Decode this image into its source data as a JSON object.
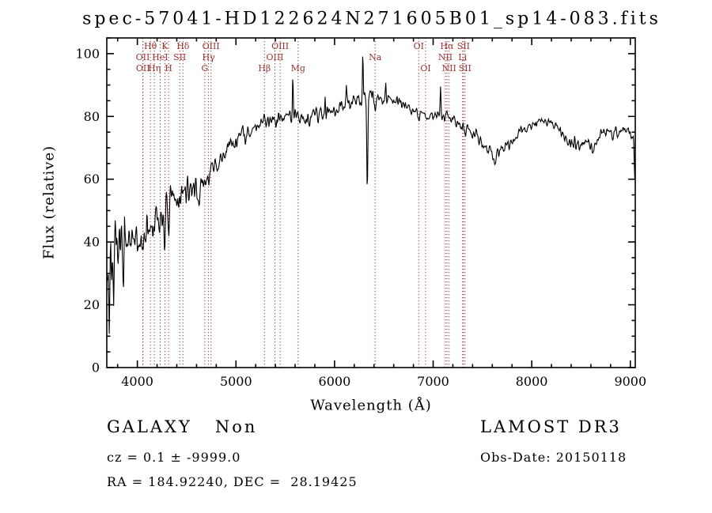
{
  "title": "spec-57041-HD122624N271605B01_sp14-083.fits",
  "chart_data": {
    "type": "line",
    "title": "spec-57041-HD122624N271605B01_sp14-083.fits",
    "xlabel": "Wavelength (Å)",
    "ylabel": "Flux (relative)",
    "xlim": [
      3690,
      9050
    ],
    "ylim": [
      0,
      105
    ],
    "xticks": [
      4000,
      5000,
      6000,
      7000,
      8000,
      9000
    ],
    "yticks": [
      0,
      20,
      40,
      60,
      80,
      100
    ],
    "x_minor_step": 200,
    "y_minor_step": 5,
    "grid": false,
    "legend": "none",
    "line_color": "#000000",
    "marker_color": "#993333",
    "spectral_lines": [
      {
        "label": "OII",
        "wavelength": 4055,
        "row": 2
      },
      {
        "label": "OII",
        "wavelength": 4057,
        "row": 3
      },
      {
        "label": "Hθ",
        "wavelength": 4132,
        "row": 1
      },
      {
        "label": "Hη",
        "wavelength": 4172,
        "row": 3
      },
      {
        "label": "HeI",
        "wavelength": 4231,
        "row": 2
      },
      {
        "label": "K",
        "wavelength": 4279,
        "row": 1
      },
      {
        "label": "H",
        "wavelength": 4317,
        "row": 3
      },
      {
        "label": "SII",
        "wavelength": 4430,
        "row": 2
      },
      {
        "label": "Hδ",
        "wavelength": 4463,
        "row": 1
      },
      {
        "label": "G",
        "wavelength": 4684,
        "row": 3
      },
      {
        "label": "Hγ",
        "wavelength": 4722,
        "row": 2
      },
      {
        "label": "OIII",
        "wavelength": 4747,
        "row": 1
      },
      {
        "label": "Hβ",
        "wavelength": 5289,
        "row": 3
      },
      {
        "label": "OIII",
        "wavelength": 5395,
        "row": 2
      },
      {
        "label": "OIII",
        "wavelength": 5448,
        "row": 1
      },
      {
        "label": "Mg",
        "wavelength": 5630,
        "row": 3
      },
      {
        "label": "Na",
        "wavelength": 6412,
        "row": 2
      },
      {
        "label": "OI",
        "wavelength": 6854,
        "row": 1
      },
      {
        "label": "OI",
        "wavelength": 6924,
        "row": 3
      },
      {
        "label": "NII",
        "wavelength": 7124,
        "row": 2
      },
      {
        "label": "Hα",
        "wavelength": 7140,
        "row": 1
      },
      {
        "label": "NII",
        "wavelength": 7162,
        "row": 3
      },
      {
        "label": "Li",
        "wavelength": 7298,
        "row": 2
      },
      {
        "label": "SII",
        "wavelength": 7308,
        "row": 1
      },
      {
        "label": "SII",
        "wavelength": 7323,
        "row": 3
      }
    ],
    "spectrum": {
      "seed": 7,
      "sample_step": 5,
      "continuum_points": [
        [
          3690,
          32
        ],
        [
          3750,
          34
        ],
        [
          3850,
          36
        ],
        [
          3950,
          38
        ],
        [
          4050,
          41
        ],
        [
          4150,
          44
        ],
        [
          4250,
          48
        ],
        [
          4350,
          52
        ],
        [
          4450,
          55
        ],
        [
          4550,
          57
        ],
        [
          4650,
          58
        ],
        [
          4750,
          62
        ],
        [
          4850,
          66
        ],
        [
          4950,
          71
        ],
        [
          5050,
          74
        ],
        [
          5150,
          76
        ],
        [
          5250,
          78
        ],
        [
          5350,
          79
        ],
        [
          5450,
          80
        ],
        [
          5550,
          80
        ],
        [
          5650,
          80
        ],
        [
          5750,
          80
        ],
        [
          5850,
          81
        ],
        [
          5950,
          82
        ],
        [
          6050,
          83
        ],
        [
          6150,
          84
        ],
        [
          6250,
          85
        ],
        [
          6350,
          86
        ],
        [
          6450,
          86
        ],
        [
          6550,
          86
        ],
        [
          6650,
          85
        ],
        [
          6750,
          83
        ],
        [
          6850,
          81
        ],
        [
          6950,
          80
        ],
        [
          7050,
          80
        ],
        [
          7150,
          80
        ],
        [
          7250,
          78
        ],
        [
          7350,
          76
        ],
        [
          7450,
          73
        ],
        [
          7550,
          70
        ],
        [
          7650,
          69
        ],
        [
          7750,
          71
        ],
        [
          7850,
          74
        ],
        [
          7950,
          76
        ],
        [
          8050,
          78
        ],
        [
          8150,
          79
        ],
        [
          8250,
          77
        ],
        [
          8350,
          73
        ],
        [
          8450,
          71
        ],
        [
          8550,
          71
        ],
        [
          8650,
          73
        ],
        [
          8750,
          75
        ],
        [
          8850,
          75
        ],
        [
          8950,
          76
        ],
        [
          9050,
          73
        ]
      ],
      "noise_envelope": [
        [
          3690,
          8
        ],
        [
          3900,
          6
        ],
        [
          4200,
          4.5
        ],
        [
          4500,
          3.2
        ],
        [
          4800,
          2.6
        ],
        [
          5200,
          2.2
        ],
        [
          5800,
          1.9
        ],
        [
          6500,
          1.7
        ],
        [
          7200,
          1.5
        ],
        [
          8000,
          1.4
        ],
        [
          9050,
          1.5
        ]
      ],
      "features": [
        {
          "wavelength": 3715,
          "amplitude": -18,
          "width": 6
        },
        {
          "wavelength": 3762,
          "amplitude": -13,
          "width": 5
        },
        {
          "wavelength": 3870,
          "amplitude": 12,
          "width": 5
        },
        {
          "wavelength": 4279,
          "amplitude": -7,
          "width": 8
        },
        {
          "wavelength": 4317,
          "amplitude": -6,
          "width": 8
        },
        {
          "wavelength": 4630,
          "amplitude": -7,
          "width": 10
        },
        {
          "wavelength": 5577,
          "amplitude": 13,
          "width": 6
        },
        {
          "wavelength": 5905,
          "amplitude": 5,
          "width": 5
        },
        {
          "wavelength": 6120,
          "amplitude": 7,
          "width": 5
        },
        {
          "wavelength": 6287,
          "amplitude": 16,
          "width": 6
        },
        {
          "wavelength": 6332,
          "amplitude": -28,
          "width": 8
        },
        {
          "wavelength": 6412,
          "amplitude": -4,
          "width": 7
        },
        {
          "wavelength": 6520,
          "amplitude": 5,
          "width": 6
        },
        {
          "wavelength": 7075,
          "amplitude": 9,
          "width": 6
        },
        {
          "wavelength": 7620,
          "amplitude": -5,
          "width": 20
        },
        {
          "wavelength": 8620,
          "amplitude": -4,
          "width": 12
        },
        {
          "wavelength": 9045,
          "amplitude": -12,
          "width": 7
        }
      ]
    }
  },
  "annotations": {
    "class_label": "GALAXY   Non",
    "survey": "LAMOST DR3",
    "cz": "cz = 0.1 ± -9999.0",
    "obs_date": "Obs-Date: 20150118",
    "coords": "RA = 184.92240, DEC =  28.19425"
  }
}
